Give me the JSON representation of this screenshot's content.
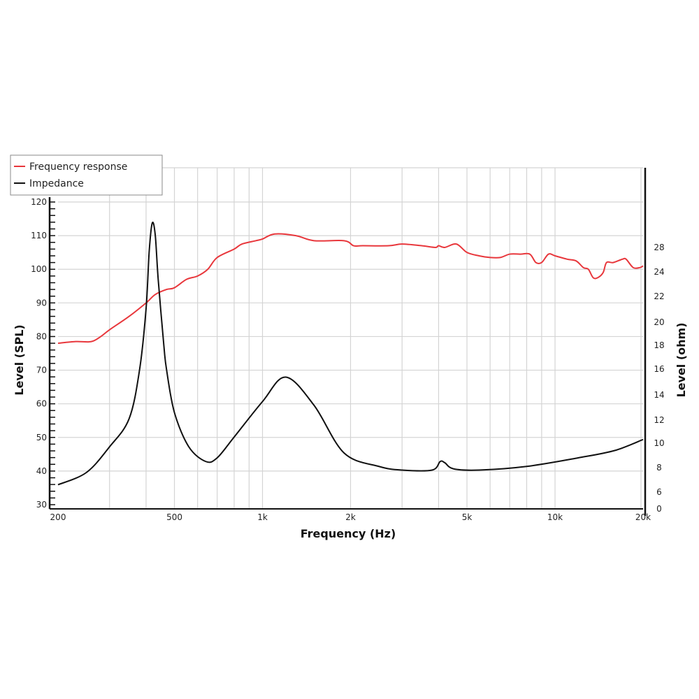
{
  "chart_data": {
    "type": "line",
    "xlabel": "Frequency (Hz)",
    "ylabel": "Level (SPL)",
    "y2label": "Level (ohm)",
    "xscale": "log",
    "xlim": [
      200,
      20000
    ],
    "ylim": [
      30,
      120
    ],
    "grid": true,
    "legend_position": "top-left",
    "x_ticks": [
      {
        "v": 200,
        "label": "200"
      },
      {
        "v": 500,
        "label": "500"
      },
      {
        "v": 1000,
        "label": "1k"
      },
      {
        "v": 2000,
        "label": "2k"
      },
      {
        "v": 5000,
        "label": "5k"
      },
      {
        "v": 10000,
        "label": "10k"
      },
      {
        "v": 20000,
        "label": "20k"
      }
    ],
    "y_ticks": [
      "30",
      "40",
      "50",
      "60",
      "70",
      "80",
      "90",
      "100",
      "110",
      "120"
    ],
    "y2_ticks": [
      "28",
      "24",
      "22",
      "20",
      "18",
      "16",
      "14",
      "12",
      "10",
      "8",
      "6",
      "0"
    ],
    "series": [
      {
        "name": "Frequency response",
        "axis": "left",
        "color": "#e8373c",
        "points": [
          [
            200,
            78
          ],
          [
            230,
            78.5
          ],
          [
            260,
            78.5
          ],
          [
            280,
            80
          ],
          [
            300,
            82
          ],
          [
            350,
            86
          ],
          [
            400,
            90
          ],
          [
            430,
            92.5
          ],
          [
            470,
            94
          ],
          [
            500,
            94.5
          ],
          [
            550,
            97
          ],
          [
            600,
            98
          ],
          [
            650,
            100
          ],
          [
            700,
            103.5
          ],
          [
            800,
            106
          ],
          [
            850,
            107.5
          ],
          [
            950,
            108.5
          ],
          [
            1000,
            109
          ],
          [
            1100,
            110.5
          ],
          [
            1300,
            110
          ],
          [
            1500,
            108.5
          ],
          [
            1900,
            108.5
          ],
          [
            2050,
            107
          ],
          [
            2200,
            107
          ],
          [
            2700,
            107
          ],
          [
            3000,
            107.5
          ],
          [
            3500,
            107
          ],
          [
            3900,
            106.5
          ],
          [
            4000,
            107
          ],
          [
            4200,
            106.5
          ],
          [
            4600,
            107.5
          ],
          [
            5000,
            105
          ],
          [
            5500,
            104
          ],
          [
            6000,
            103.5
          ],
          [
            6500,
            103.5
          ],
          [
            7000,
            104.5
          ],
          [
            7600,
            104.5
          ],
          [
            8200,
            104.5
          ],
          [
            8600,
            102
          ],
          [
            9000,
            102
          ],
          [
            9500,
            104.5
          ],
          [
            10000,
            104
          ],
          [
            11000,
            103
          ],
          [
            11800,
            102.5
          ],
          [
            12500,
            100.5
          ],
          [
            13000,
            100
          ],
          [
            13500,
            97.5
          ],
          [
            14000,
            97.5
          ],
          [
            14600,
            99
          ],
          [
            15000,
            102
          ],
          [
            15800,
            102
          ],
          [
            17000,
            103
          ],
          [
            17500,
            103
          ],
          [
            18500,
            100.5
          ],
          [
            19500,
            100.5
          ],
          [
            20000,
            101
          ]
        ]
      },
      {
        "name": "Impedance",
        "axis": "right",
        "color": "#111111",
        "points": [
          [
            200,
            6.6
          ],
          [
            250,
            7.6
          ],
          [
            300,
            9.7
          ],
          [
            350,
            12
          ],
          [
            380,
            16
          ],
          [
            400,
            21
          ],
          [
            410,
            25.7
          ],
          [
            420,
            28
          ],
          [
            430,
            27
          ],
          [
            440,
            23.4
          ],
          [
            460,
            18
          ],
          [
            470,
            16
          ],
          [
            500,
            12.5
          ],
          [
            560,
            9.7
          ],
          [
            640,
            8.5
          ],
          [
            700,
            8.8
          ],
          [
            800,
            10.5
          ],
          [
            1000,
            13.4
          ],
          [
            1200,
            15.4
          ],
          [
            1500,
            13.1
          ],
          [
            1900,
            9.2
          ],
          [
            2500,
            8.1
          ],
          [
            3000,
            7.8
          ],
          [
            3800,
            7.8
          ],
          [
            4050,
            8.5
          ],
          [
            4200,
            8.4
          ],
          [
            4500,
            7.9
          ],
          [
            5500,
            7.8
          ],
          [
            8000,
            8.1
          ],
          [
            12000,
            8.8
          ],
          [
            16000,
            9.4
          ],
          [
            20000,
            10.3
          ]
        ]
      }
    ]
  }
}
